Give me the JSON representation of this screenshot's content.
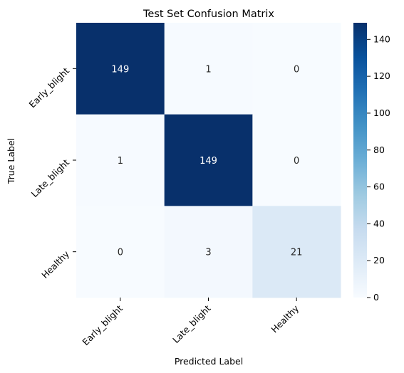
{
  "chart_data": {
    "type": "heatmap",
    "title": "Test Set Confusion Matrix",
    "xlabel": "Predicted Label",
    "ylabel": "True Label",
    "x_categories": [
      "Early_blight",
      "Late_blight",
      "Healthy"
    ],
    "y_categories": [
      "Early_blight",
      "Late_blight",
      "Healthy"
    ],
    "values": [
      [
        149,
        1,
        0
      ],
      [
        1,
        149,
        0
      ],
      [
        0,
        3,
        21
      ]
    ],
    "colormap": "Blues",
    "colorbar": {
      "min": 0,
      "max": 149,
      "ticks": [
        0,
        20,
        40,
        60,
        80,
        100,
        120,
        140
      ]
    },
    "colors": {
      "low": "#f7fbff",
      "high": "#08306b"
    }
  }
}
